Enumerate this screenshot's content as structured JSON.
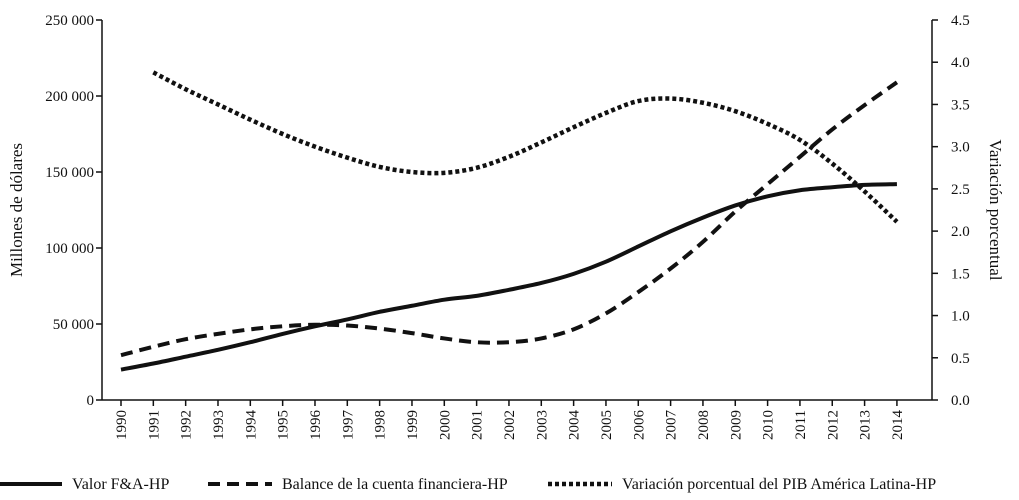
{
  "chart_data": {
    "type": "line",
    "title": "",
    "categories": [
      "1990",
      "1991",
      "1992",
      "1993",
      "1994",
      "1995",
      "1996",
      "1997",
      "1998",
      "1999",
      "2000",
      "2001",
      "2002",
      "2003",
      "2004",
      "2005",
      "2006",
      "2007",
      "2008",
      "2009",
      "2010",
      "2011",
      "2012",
      "2013",
      "2014"
    ],
    "y_left": {
      "label": "Millones de dólares",
      "ticks": [
        "0",
        "50 000",
        "100 000",
        "150 000",
        "200 000",
        "250 000"
      ],
      "lim": [
        0,
        250000
      ]
    },
    "y_right": {
      "label": "Variación porcentual",
      "ticks": [
        "0.0",
        "0.5",
        "1.0",
        "1.5",
        "2.0",
        "2.5",
        "3.0",
        "3.5",
        "4.0",
        "4.5"
      ],
      "lim": [
        0,
        4.5
      ]
    },
    "grid": false,
    "legend_position": "bottom",
    "series": [
      {
        "name": "Valor F&A-HP",
        "axis": "left",
        "style": "solid",
        "values": [
          20000,
          24000,
          28500,
          33000,
          38000,
          43500,
          48500,
          53000,
          58000,
          62000,
          66000,
          68500,
          72500,
          77000,
          83000,
          91000,
          101000,
          111000,
          120000,
          128000,
          134000,
          138000,
          140000,
          141500,
          142000
        ]
      },
      {
        "name": "Balance de la cuenta financiera-HP",
        "axis": "left",
        "style": "dashed",
        "values": [
          29500,
          35000,
          40000,
          43500,
          46500,
          48500,
          49500,
          49000,
          47000,
          44000,
          40500,
          38000,
          38000,
          40500,
          46500,
          57000,
          71000,
          86500,
          104000,
          124000,
          142000,
          160000,
          178000,
          194000,
          209000
        ]
      },
      {
        "name": "Variación porcentual del PIB América Latina-HP",
        "axis": "right",
        "style": "dotted",
        "values": [
          null,
          3.88,
          3.68,
          3.5,
          3.32,
          3.15,
          3.0,
          2.87,
          2.76,
          2.7,
          2.69,
          2.75,
          2.88,
          3.05,
          3.23,
          3.4,
          3.54,
          3.57,
          3.52,
          3.42,
          3.27,
          3.08,
          2.8,
          2.47,
          2.11
        ]
      }
    ]
  }
}
